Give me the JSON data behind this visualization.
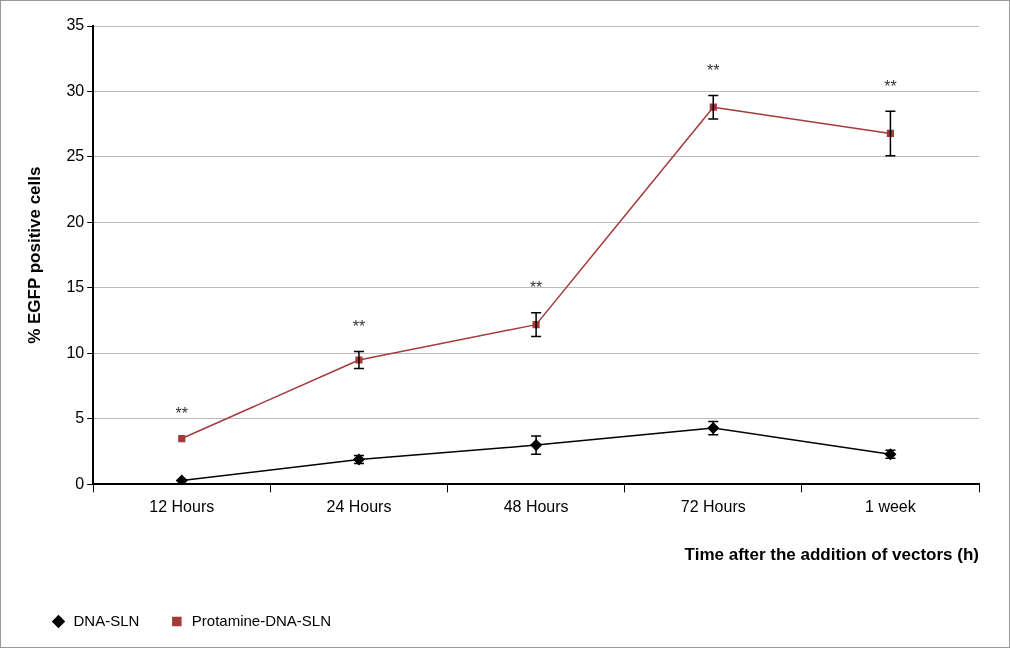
{
  "chart_data": {
    "type": "line",
    "xlabel": "Time after the addition of vectors (h)",
    "ylabel": "% EGFP positive cells",
    "categories": [
      "12 Hours",
      "24 Hours",
      "48 Hours",
      "72 Hours",
      "1 week"
    ],
    "series": [
      {
        "name": "DNA-SLN",
        "color": "#000000",
        "marker": "diamond",
        "values": [
          0.3,
          1.9,
          3.0,
          4.3,
          2.3
        ],
        "errors": [
          null,
          0.3,
          0.7,
          0.5,
          0.3
        ]
      },
      {
        "name": "Protamine-DNA-SLN",
        "color": "#a33a3a",
        "marker": "square",
        "values": [
          3.5,
          9.5,
          12.2,
          28.8,
          26.8
        ],
        "errors": [
          null,
          0.65,
          0.9,
          0.9,
          1.7
        ]
      }
    ],
    "ylim": [
      0,
      35
    ],
    "yticks": [
      0,
      5,
      10,
      15,
      20,
      25,
      30,
      35
    ],
    "grid": "y",
    "legend": "bottom left",
    "annotations": [
      {
        "text": "**",
        "x": "12 Hours",
        "y": 3.5
      },
      {
        "text": "**",
        "x": "24 Hours",
        "y": 9.5
      },
      {
        "text": "**",
        "x": "48 Hours",
        "y": 12.2
      },
      {
        "text": "**",
        "x": "72 Hours",
        "y": 28.8
      },
      {
        "text": "**",
        "x": "1 week",
        "y": 26.8
      }
    ]
  }
}
